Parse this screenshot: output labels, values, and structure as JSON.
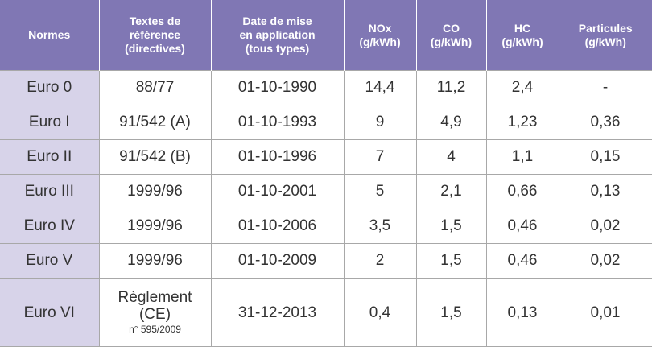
{
  "table": {
    "header": [
      [
        "Normes"
      ],
      [
        "Textes de",
        "référence",
        "(directives)"
      ],
      [
        "Date de mise",
        "en application",
        "(tous types)"
      ],
      [
        "NOx",
        "(g/kWh)"
      ],
      [
        "CO",
        "(g/kWh)"
      ],
      [
        "HC",
        "(g/kWh)"
      ],
      [
        "Particules",
        "(g/kWh)"
      ]
    ],
    "rows": [
      [
        "Euro 0",
        "88/77",
        "01-10-1990",
        "14,4",
        "11,2",
        "2,4",
        "-"
      ],
      [
        "Euro I",
        "91/542 (A)",
        "01-10-1993",
        "9",
        "4,9",
        "1,23",
        "0,36"
      ],
      [
        "Euro II",
        "91/542 (B)",
        "01-10-1996",
        "7",
        "4",
        "1,1",
        "0,15"
      ],
      [
        "Euro III",
        "1999/96",
        "01-10-2001",
        "5",
        "2,1",
        "0,66",
        "0,13"
      ],
      [
        "Euro IV",
        "1999/96",
        "01-10-2006",
        "3,5",
        "1,5",
        "0,46",
        "0,02"
      ],
      [
        "Euro V",
        "1999/96",
        "01-10-2009",
        "2",
        "1,5",
        "0,46",
        "0,02"
      ],
      [
        "Euro VI",
        {
          "lines": [
            "Règlement",
            "(CE)"
          ],
          "note": "n° 595/2009"
        },
        "31-12-2013",
        "0,4",
        "1,5",
        "0,13",
        "0,01"
      ]
    ]
  }
}
